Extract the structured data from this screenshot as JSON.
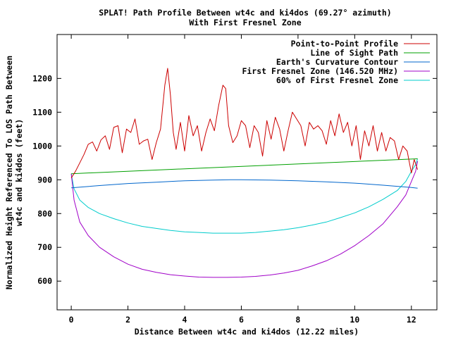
{
  "chart_data": {
    "type": "line",
    "title": "SPLAT! Path Profile Between wt4c and ki4dos (69.27° azimuth)",
    "subtitle": "With First Fresnel Zone",
    "xlabel": "Distance Between wt4c and ki4dos (12.22 miles)",
    "ylabel_lines": [
      "Normalized Height Referenced To LOS Path Between",
      "wt4c and ki4dos (feet)"
    ],
    "xlim": [
      -0.5,
      12.9
    ],
    "ylim": [
      515,
      1330
    ],
    "xticks": [
      0,
      2,
      4,
      6,
      8,
      10,
      12
    ],
    "yticks": [
      600,
      700,
      800,
      900,
      1000,
      1100,
      1200
    ],
    "legend_position": "top-right",
    "grid": false,
    "series": [
      {
        "name": "Point-to-Point Profile",
        "color": "#cc0000",
        "x": [
          0,
          0.15,
          0.3,
          0.45,
          0.6,
          0.75,
          0.9,
          1.05,
          1.2,
          1.35,
          1.5,
          1.65,
          1.8,
          1.95,
          2.1,
          2.25,
          2.4,
          2.55,
          2.7,
          2.85,
          3.0,
          3.15,
          3.3,
          3.4,
          3.5,
          3.6,
          3.7,
          3.85,
          4.0,
          4.15,
          4.3,
          4.45,
          4.6,
          4.75,
          4.9,
          5.05,
          5.2,
          5.35,
          5.45,
          5.55,
          5.7,
          5.85,
          6.0,
          6.15,
          6.3,
          6.45,
          6.6,
          6.75,
          6.9,
          7.05,
          7.2,
          7.35,
          7.5,
          7.65,
          7.8,
          7.95,
          8.1,
          8.25,
          8.4,
          8.55,
          8.7,
          8.85,
          9.0,
          9.15,
          9.3,
          9.45,
          9.6,
          9.75,
          9.9,
          10.05,
          10.2,
          10.35,
          10.5,
          10.65,
          10.8,
          10.95,
          11.1,
          11.25,
          11.4,
          11.55,
          11.7,
          11.85,
          12.0,
          12.1,
          12.22
        ],
        "y": [
          905,
          925,
          950,
          975,
          1005,
          1012,
          985,
          1018,
          1030,
          990,
          1055,
          1060,
          980,
          1050,
          1040,
          1080,
          1005,
          1015,
          1020,
          960,
          1010,
          1050,
          1180,
          1230,
          1150,
          1040,
          990,
          1070,
          985,
          1090,
          1030,
          1060,
          985,
          1040,
          1080,
          1045,
          1120,
          1180,
          1170,
          1060,
          1010,
          1030,
          1075,
          1060,
          995,
          1060,
          1040,
          970,
          1075,
          1020,
          1085,
          1050,
          985,
          1045,
          1100,
          1080,
          1060,
          1000,
          1070,
          1050,
          1060,
          1045,
          1005,
          1075,
          1030,
          1095,
          1040,
          1070,
          1000,
          1060,
          960,
          1045,
          1000,
          1060,
          985,
          1040,
          985,
          1025,
          1015,
          960,
          1000,
          985,
          920,
          960,
          930
        ]
      },
      {
        "name": "Line of Sight Path",
        "color": "#00a000",
        "x": [
          0,
          12.22
        ],
        "y": [
          918,
          962
        ]
      },
      {
        "name": "Earth's Curvature Contour",
        "color": "#0066cc",
        "x": [
          0,
          1,
          2,
          3,
          4,
          5,
          5.61,
          6,
          7,
          8,
          9,
          10,
          11,
          12,
          12.22
        ],
        "y": [
          876,
          883,
          889,
          893,
          897,
          899,
          900,
          900,
          899,
          897,
          894,
          890,
          884,
          877,
          875
        ]
      },
      {
        "name": "First Fresnel Zone (146.520 MHz)",
        "color": "#a000c8",
        "x": [
          0,
          0.1,
          0.3,
          0.6,
          1,
          1.5,
          2,
          2.5,
          3,
          3.5,
          4,
          4.5,
          5,
          5.5,
          6,
          6.5,
          7,
          7.5,
          8,
          8.5,
          9,
          9.5,
          10,
          10.5,
          11,
          11.5,
          11.8,
          12.0,
          12.15,
          12.22
        ],
        "y": [
          918,
          840,
          775,
          735,
          700,
          672,
          650,
          635,
          626,
          619,
          615,
          612,
          611,
          611,
          612,
          614,
          618,
          624,
          632,
          645,
          660,
          680,
          705,
          735,
          770,
          820,
          855,
          895,
          925,
          955
        ]
      },
      {
        "name": "60% of First Fresnel Zone",
        "color": "#00cccc",
        "x": [
          0,
          0.1,
          0.3,
          0.6,
          1,
          1.5,
          2,
          2.5,
          3,
          3.5,
          4,
          4.5,
          5,
          5.5,
          6,
          6.5,
          7,
          7.5,
          8,
          8.5,
          9,
          9.5,
          10,
          10.5,
          11,
          11.5,
          11.8,
          12.0,
          12.15,
          12.22
        ],
        "y": [
          918,
          873,
          840,
          818,
          800,
          785,
          772,
          762,
          756,
          750,
          746,
          744,
          742,
          742,
          742,
          744,
          748,
          752,
          758,
          766,
          775,
          788,
          802,
          820,
          842,
          868,
          895,
          925,
          945,
          962
        ]
      }
    ]
  }
}
